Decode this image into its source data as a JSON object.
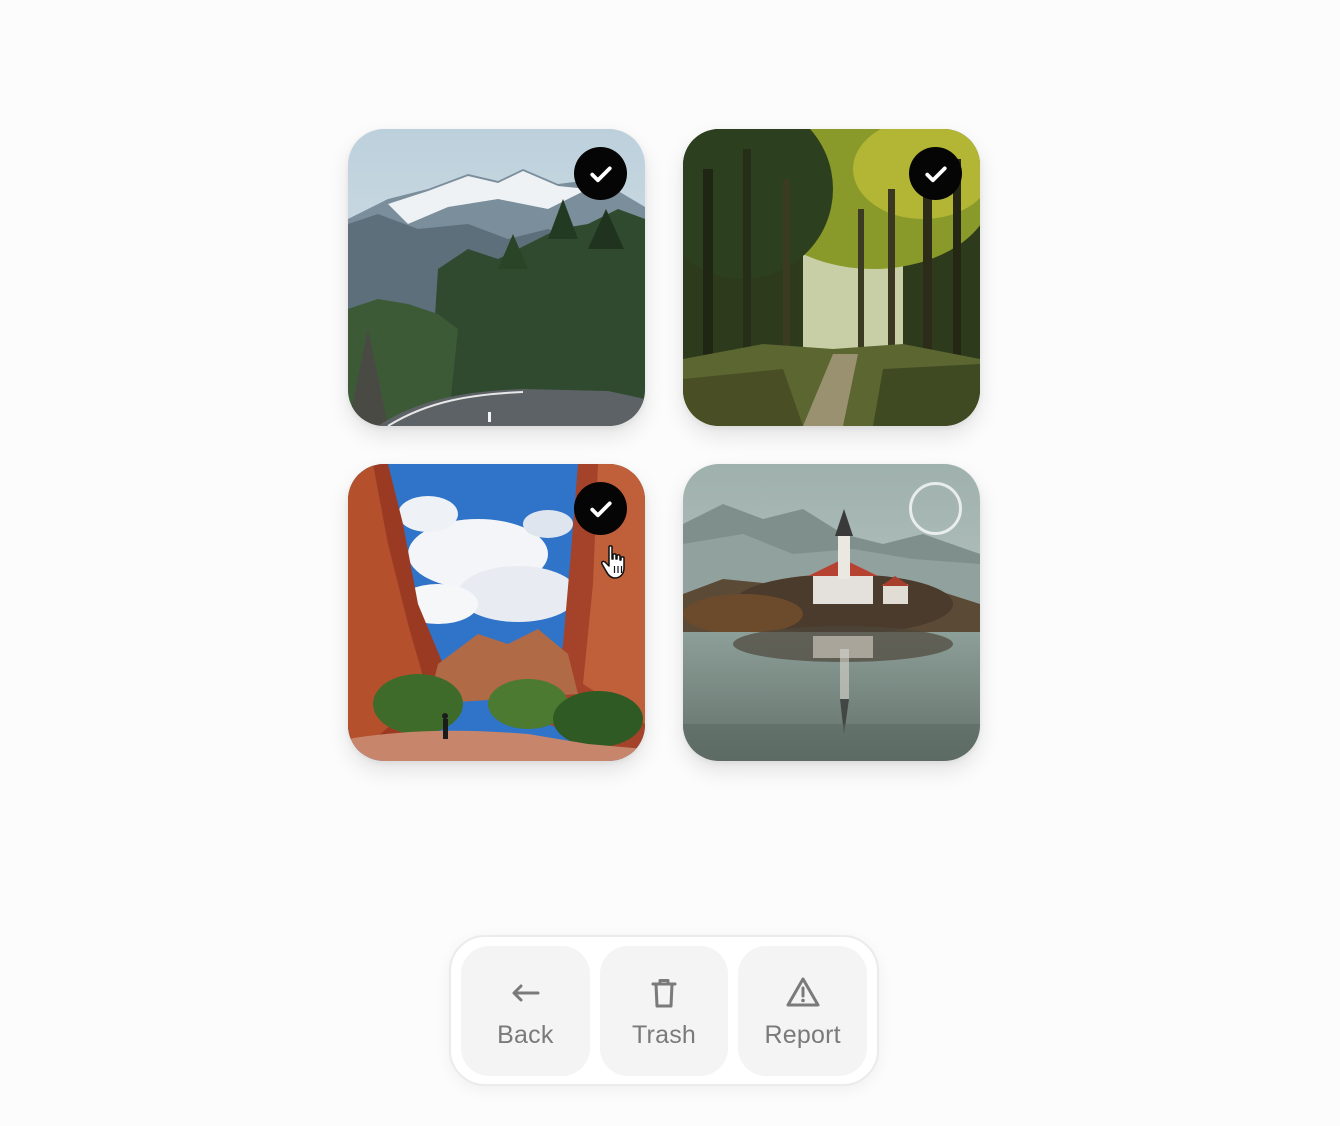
{
  "gallery": {
    "items": [
      {
        "scene": "mountain-road",
        "selected": true
      },
      {
        "scene": "forest-path",
        "selected": true
      },
      {
        "scene": "red-canyon",
        "selected": true
      },
      {
        "scene": "lake-church",
        "selected": false
      }
    ]
  },
  "toolbar": {
    "back_label": "Back",
    "trash_label": "Trash",
    "report_label": "Report",
    "back_icon": "arrow-left-icon",
    "trash_icon": "trash-icon",
    "report_icon": "warning-icon"
  },
  "colors": {
    "check_on": "#050505",
    "label": "#7a7a7a",
    "button_bg": "#f4f4f4"
  }
}
